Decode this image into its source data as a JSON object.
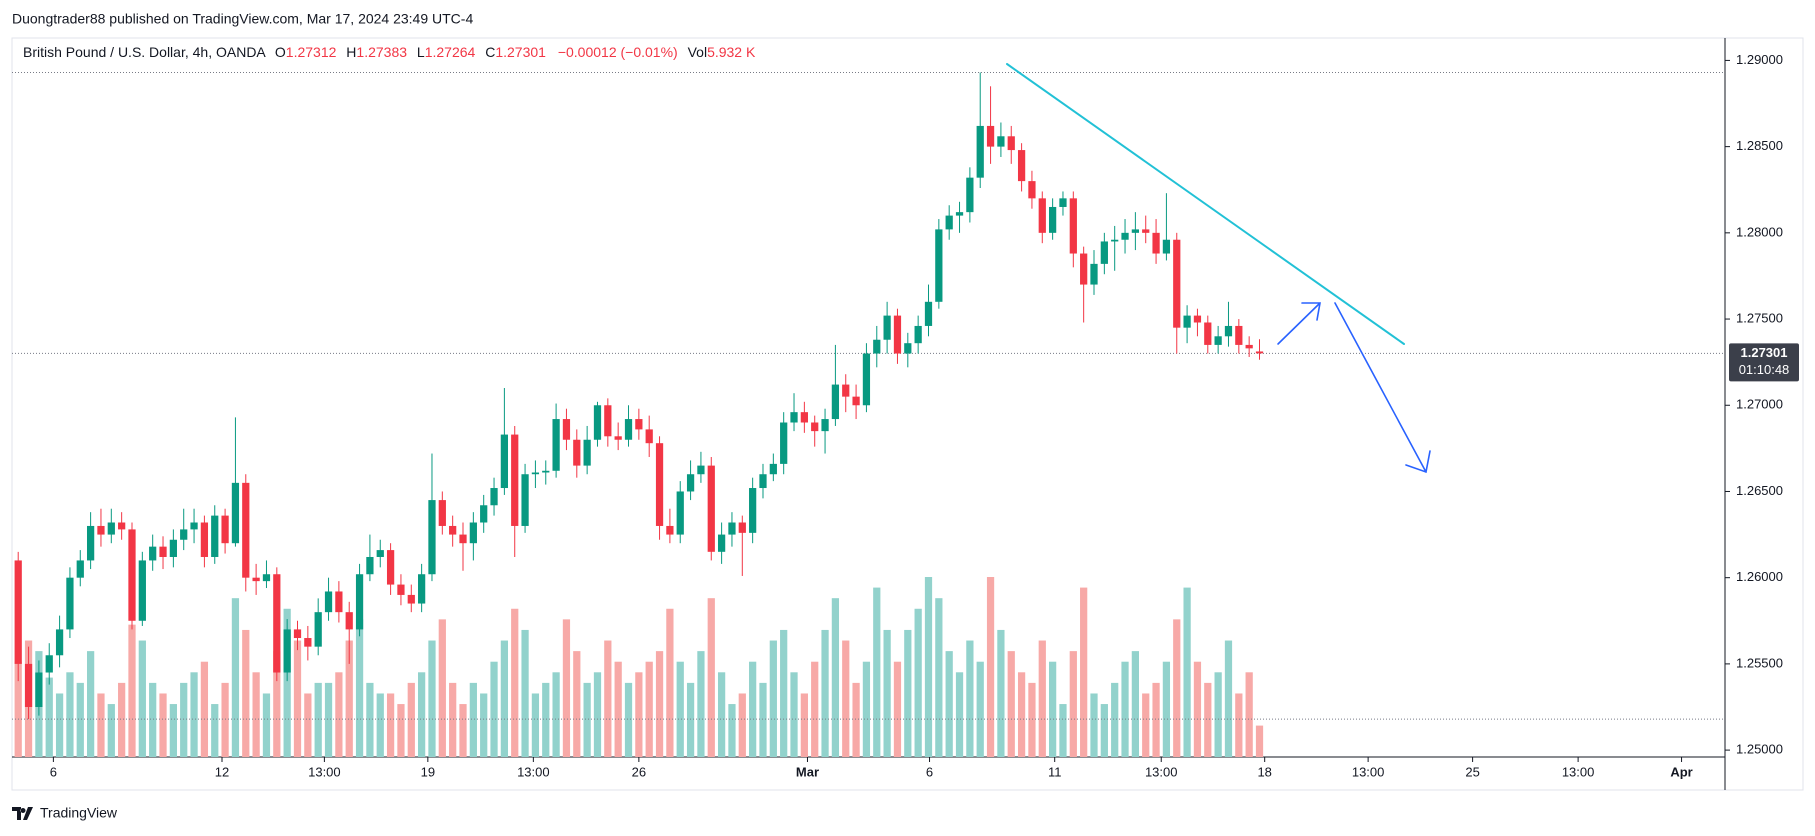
{
  "header": {
    "published": "Duongtrader88 published on TradingView.com, Mar 17, 2024 23:49 UTC-4"
  },
  "chart_data": {
    "type": "candlestick",
    "title": "British Pound / U.S. Dollar, 4h, OANDA",
    "legend_prefixes": {
      "open": "O",
      "high": "H",
      "low": "L",
      "close": "C",
      "volume": "Vol"
    },
    "change_label": "−0.00012 (−0.01%)",
    "volume_label": "5.932 K",
    "countdown": "01:10:48",
    "up_color": "#089981",
    "down_color": "#f23645",
    "volume_up_color": "#92d2cc",
    "volume_down_color": "#f7a9a7",
    "x": [
      0,
      1,
      2,
      3,
      4,
      5,
      6,
      7,
      8,
      9,
      10,
      11,
      12,
      13,
      14,
      15,
      16,
      17,
      18,
      19,
      20,
      21,
      22,
      23,
      24,
      25,
      26,
      27,
      28,
      29,
      30,
      31,
      32,
      33,
      34,
      35,
      36,
      37,
      38,
      39,
      40,
      41,
      42,
      43,
      44,
      45,
      46,
      47,
      48,
      49,
      50,
      51,
      52,
      53,
      54,
      55,
      56,
      57,
      58,
      59,
      60,
      61,
      62,
      63,
      64,
      65,
      66,
      67,
      68,
      69,
      70,
      71,
      72,
      73,
      74,
      75,
      76,
      77,
      78,
      79,
      80,
      81,
      82,
      83,
      84,
      85,
      86,
      87,
      88,
      89,
      90,
      91,
      92,
      93,
      94,
      95,
      96,
      97,
      98,
      99,
      100,
      101,
      102,
      103,
      104,
      105,
      106,
      107,
      108,
      109,
      110,
      111,
      112,
      113,
      114,
      115,
      116,
      117,
      118,
      119,
      120
    ],
    "open": [
      1.261,
      1.255,
      1.2525,
      1.2545,
      1.2555,
      1.257,
      1.26,
      1.261,
      1.263,
      1.2625,
      1.2632,
      1.2628,
      1.2575,
      1.261,
      1.2618,
      1.2612,
      1.2622,
      1.2628,
      1.2632,
      1.2612,
      1.2636,
      1.262,
      1.2655,
      1.26,
      1.2598,
      1.2602,
      1.2545,
      1.257,
      1.2565,
      1.256,
      1.258,
      1.2592,
      1.258,
      1.257,
      1.2602,
      1.2612,
      1.2616,
      1.2596,
      1.259,
      1.2585,
      1.2602,
      1.2645,
      1.263,
      1.2625,
      1.262,
      1.2632,
      1.2642,
      1.2652,
      1.2683,
      1.263,
      1.266,
      1.2661,
      1.2662,
      1.2692,
      1.268,
      1.2665,
      1.268,
      1.27,
      1.2682,
      1.268,
      1.2692,
      1.2686,
      1.2678,
      1.263,
      1.2625,
      1.265,
      1.266,
      1.2665,
      1.2615,
      1.2625,
      1.2632,
      1.2626,
      1.2652,
      1.266,
      1.2666,
      1.269,
      1.2696,
      1.269,
      1.2685,
      1.2692,
      1.2712,
      1.2705,
      1.27,
      1.273,
      1.2738,
      1.2752,
      1.273,
      1.2736,
      1.2746,
      1.276,
      1.2802,
      1.281,
      1.2812,
      1.2832,
      1.2862,
      1.285,
      1.2856,
      1.2848,
      1.283,
      1.282,
      1.28,
      1.2815,
      1.282,
      1.2788,
      1.277,
      1.2782,
      1.2795,
      1.2796,
      1.28,
      1.2802,
      1.28,
      1.2788,
      1.2796,
      1.2745,
      1.2752,
      1.2748,
      1.2735,
      1.274,
      1.2746,
      1.2735,
      1.27312
    ],
    "high": [
      1.2615,
      1.256,
      1.2552,
      1.2562,
      1.2578,
      1.2606,
      1.2616,
      1.2638,
      1.264,
      1.264,
      1.2638,
      1.2632,
      1.2615,
      1.2625,
      1.2624,
      1.2628,
      1.264,
      1.264,
      1.2636,
      1.2642,
      1.264,
      1.2693,
      1.266,
      1.2608,
      1.261,
      1.2606,
      1.2576,
      1.2575,
      1.2572,
      1.2588,
      1.26,
      1.2598,
      1.2586,
      1.2608,
      1.2625,
      1.2622,
      1.262,
      1.2602,
      1.2596,
      1.2608,
      1.2672,
      1.265,
      1.2636,
      1.2632,
      1.2638,
      1.2648,
      1.2658,
      1.271,
      1.2688,
      1.2666,
      1.2668,
      1.2668,
      1.2701,
      1.2698,
      1.2686,
      1.2688,
      1.2702,
      1.2704,
      1.269,
      1.27,
      1.2698,
      1.2694,
      1.2682,
      1.264,
      1.2656,
      1.2668,
      1.2673,
      1.267,
      1.2632,
      1.2638,
      1.2636,
      1.2658,
      1.2666,
      1.2672,
      1.2696,
      1.2707,
      1.2702,
      1.2694,
      1.2698,
      1.2735,
      1.2718,
      1.2712,
      1.2736,
      1.2746,
      1.276,
      1.2756,
      1.2742,
      1.2752,
      1.277,
      1.2808,
      1.2816,
      1.2818,
      1.2838,
      1.2893,
      1.2885,
      1.2864,
      1.2862,
      1.2852,
      1.2836,
      1.2824,
      1.282,
      1.2824,
      1.2824,
      1.2792,
      1.279,
      1.28,
      1.2804,
      1.2808,
      1.2812,
      1.281,
      1.2808,
      1.2823,
      1.28,
      1.2758,
      1.2756,
      1.2752,
      1.2746,
      1.276,
      1.275,
      1.274,
      1.27383
    ],
    "low": [
      1.254,
      1.2518,
      1.252,
      1.2538,
      1.2548,
      1.2565,
      1.2595,
      1.2605,
      1.2618,
      1.262,
      1.2622,
      1.257,
      1.2572,
      1.2604,
      1.2605,
      1.2606,
      1.2616,
      1.262,
      1.2606,
      1.2608,
      1.2614,
      1.2618,
      1.2592,
      1.259,
      1.2594,
      1.254,
      1.254,
      1.2558,
      1.2552,
      1.2555,
      1.2575,
      1.2574,
      1.255,
      1.2566,
      1.2598,
      1.2606,
      1.259,
      1.2584,
      1.258,
      1.258,
      1.2598,
      1.2625,
      1.2618,
      1.2604,
      1.261,
      1.2626,
      1.2636,
      1.2648,
      1.2612,
      1.2626,
      1.2652,
      1.2654,
      1.2658,
      1.2674,
      1.2658,
      1.266,
      1.2676,
      1.2676,
      1.2674,
      1.2676,
      1.268,
      1.267,
      1.2622,
      1.262,
      1.262,
      1.2645,
      1.2655,
      1.261,
      1.2608,
      1.2618,
      1.2601,
      1.262,
      1.2646,
      1.2656,
      1.266,
      1.2685,
      1.2684,
      1.2676,
      1.2672,
      1.2688,
      1.2696,
      1.2692,
      1.2696,
      1.2722,
      1.273,
      1.2724,
      1.2722,
      1.273,
      1.274,
      1.2756,
      1.2796,
      1.28,
      1.2806,
      1.2826,
      1.284,
      1.2844,
      1.284,
      1.2824,
      1.2814,
      1.2794,
      1.2796,
      1.281,
      1.278,
      1.2748,
      1.2764,
      1.2776,
      1.2778,
      1.2788,
      1.279,
      1.2794,
      1.2782,
      1.2784,
      1.273,
      1.2736,
      1.274,
      1.273,
      1.273,
      1.2734,
      1.273,
      1.2728,
      1.27264
    ],
    "close": [
      1.255,
      1.2525,
      1.2545,
      1.2555,
      1.257,
      1.26,
      1.261,
      1.263,
      1.2625,
      1.2632,
      1.2628,
      1.2575,
      1.261,
      1.2618,
      1.2612,
      1.2622,
      1.2628,
      1.2632,
      1.2612,
      1.2636,
      1.262,
      1.2655,
      1.26,
      1.2598,
      1.2602,
      1.2545,
      1.257,
      1.2565,
      1.256,
      1.258,
      1.2592,
      1.258,
      1.257,
      1.2602,
      1.2612,
      1.2616,
      1.2596,
      1.259,
      1.2585,
      1.2602,
      1.2645,
      1.263,
      1.2625,
      1.262,
      1.2632,
      1.2642,
      1.2652,
      1.2683,
      1.263,
      1.266,
      1.2661,
      1.2662,
      1.2692,
      1.268,
      1.2665,
      1.268,
      1.27,
      1.2682,
      1.268,
      1.2692,
      1.2686,
      1.2678,
      1.263,
      1.2625,
      1.265,
      1.266,
      1.2665,
      1.2615,
      1.2625,
      1.2632,
      1.2626,
      1.2652,
      1.266,
      1.2666,
      1.269,
      1.2696,
      1.269,
      1.2685,
      1.2692,
      1.2712,
      1.2705,
      1.27,
      1.273,
      1.2738,
      1.2752,
      1.273,
      1.2736,
      1.2746,
      1.276,
      1.2802,
      1.281,
      1.2812,
      1.2832,
      1.2862,
      1.285,
      1.2856,
      1.2848,
      1.283,
      1.282,
      1.28,
      1.2815,
      1.282,
      1.2788,
      1.277,
      1.2782,
      1.2795,
      1.2796,
      1.28,
      1.2802,
      1.28,
      1.2788,
      1.2796,
      1.2745,
      1.2752,
      1.2748,
      1.2735,
      1.274,
      1.2746,
      1.2735,
      1.2733,
      1.27301
    ],
    "volume": [
      18,
      22,
      20,
      15,
      12,
      16,
      14,
      20,
      12,
      10,
      14,
      25,
      22,
      14,
      12,
      10,
      14,
      16,
      18,
      10,
      14,
      30,
      24,
      16,
      12,
      20,
      28,
      22,
      12,
      14,
      14,
      16,
      22,
      26,
      14,
      12,
      12,
      10,
      14,
      16,
      22,
      26,
      14,
      10,
      14,
      12,
      18,
      22,
      28,
      24,
      12,
      14,
      16,
      26,
      20,
      14,
      16,
      22,
      18,
      14,
      16,
      18,
      20,
      28,
      18,
      14,
      20,
      30,
      16,
      10,
      12,
      18,
      14,
      22,
      24,
      16,
      12,
      18,
      24,
      30,
      22,
      14,
      18,
      32,
      24,
      18,
      24,
      28,
      34,
      30,
      20,
      16,
      22,
      18,
      34,
      24,
      20,
      16,
      14,
      22,
      18,
      10,
      20,
      32,
      12,
      10,
      14,
      18,
      20,
      12,
      14,
      18,
      26,
      32,
      18,
      14,
      16,
      22,
      12,
      16,
      5.932
    ],
    "xlim": [
      -0.6,
      165
    ],
    "xticks": [
      {
        "value": 3.4,
        "label": "6"
      },
      {
        "value": 19.7,
        "label": "12"
      },
      {
        "value": 29.6,
        "label": "13:00"
      },
      {
        "value": 39.6,
        "label": "19"
      },
      {
        "value": 49.8,
        "label": "13:00"
      },
      {
        "value": 60.0,
        "label": "26"
      },
      {
        "value": 76.3,
        "label": "Mar"
      },
      {
        "value": 88.1,
        "label": "6"
      },
      {
        "value": 100.2,
        "label": "11"
      },
      {
        "value": 110.5,
        "label": "13:00"
      },
      {
        "value": 120.5,
        "label": "18"
      },
      {
        "value": 130.5,
        "label": "13:00"
      },
      {
        "value": 140.6,
        "label": "25"
      },
      {
        "value": 150.8,
        "label": "13:00"
      },
      {
        "value": 160.8,
        "label": "Apr"
      }
    ],
    "ylim": [
      1.2496,
      1.2913
    ],
    "yticks": [
      {
        "value": 1.25,
        "label": "1.25000"
      },
      {
        "value": 1.255,
        "label": "1.25500"
      },
      {
        "value": 1.26,
        "label": "1.26000"
      },
      {
        "value": 1.265,
        "label": "1.26500"
      },
      {
        "value": 1.27,
        "label": "1.27000"
      },
      {
        "value": 1.275,
        "label": "1.27500"
      },
      {
        "value": 1.28,
        "label": "1.28000"
      },
      {
        "value": 1.285,
        "label": "1.28500"
      },
      {
        "value": 1.29,
        "label": "1.29000"
      }
    ]
  },
  "footer": {
    "brand": "TradingView"
  }
}
